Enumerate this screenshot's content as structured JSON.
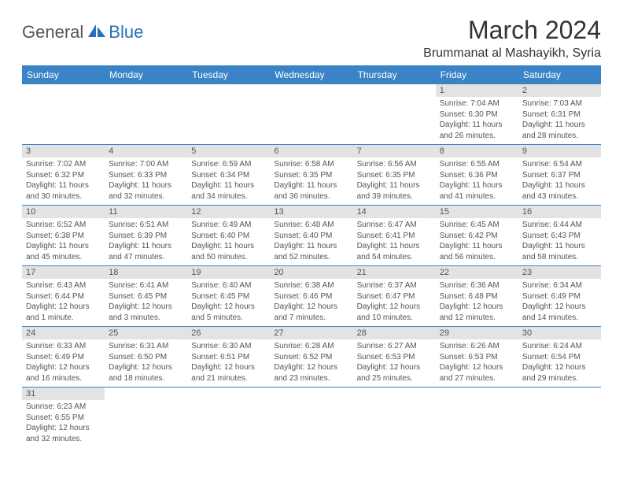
{
  "logo": {
    "part1": "General",
    "part2": "Blue"
  },
  "title": "March 2024",
  "location": "Brummanat al Mashayikh, Syria",
  "columns": [
    "Sunday",
    "Monday",
    "Tuesday",
    "Wednesday",
    "Thursday",
    "Friday",
    "Saturday"
  ],
  "colors": {
    "header_bg": "#3a83c6",
    "header_fg": "#ffffff",
    "daynum_bg": "#e3e3e3",
    "border": "#3a83c6",
    "logo_accent": "#2a6db8",
    "text": "#555555"
  },
  "weeks": [
    [
      null,
      null,
      null,
      null,
      null,
      {
        "n": "1",
        "sr": "Sunrise: 7:04 AM",
        "ss": "Sunset: 6:30 PM",
        "dl": "Daylight: 11 hours and 26 minutes."
      },
      {
        "n": "2",
        "sr": "Sunrise: 7:03 AM",
        "ss": "Sunset: 6:31 PM",
        "dl": "Daylight: 11 hours and 28 minutes."
      }
    ],
    [
      {
        "n": "3",
        "sr": "Sunrise: 7:02 AM",
        "ss": "Sunset: 6:32 PM",
        "dl": "Daylight: 11 hours and 30 minutes."
      },
      {
        "n": "4",
        "sr": "Sunrise: 7:00 AM",
        "ss": "Sunset: 6:33 PM",
        "dl": "Daylight: 11 hours and 32 minutes."
      },
      {
        "n": "5",
        "sr": "Sunrise: 6:59 AM",
        "ss": "Sunset: 6:34 PM",
        "dl": "Daylight: 11 hours and 34 minutes."
      },
      {
        "n": "6",
        "sr": "Sunrise: 6:58 AM",
        "ss": "Sunset: 6:35 PM",
        "dl": "Daylight: 11 hours and 36 minutes."
      },
      {
        "n": "7",
        "sr": "Sunrise: 6:56 AM",
        "ss": "Sunset: 6:35 PM",
        "dl": "Daylight: 11 hours and 39 minutes."
      },
      {
        "n": "8",
        "sr": "Sunrise: 6:55 AM",
        "ss": "Sunset: 6:36 PM",
        "dl": "Daylight: 11 hours and 41 minutes."
      },
      {
        "n": "9",
        "sr": "Sunrise: 6:54 AM",
        "ss": "Sunset: 6:37 PM",
        "dl": "Daylight: 11 hours and 43 minutes."
      }
    ],
    [
      {
        "n": "10",
        "sr": "Sunrise: 6:52 AM",
        "ss": "Sunset: 6:38 PM",
        "dl": "Daylight: 11 hours and 45 minutes."
      },
      {
        "n": "11",
        "sr": "Sunrise: 6:51 AM",
        "ss": "Sunset: 6:39 PM",
        "dl": "Daylight: 11 hours and 47 minutes."
      },
      {
        "n": "12",
        "sr": "Sunrise: 6:49 AM",
        "ss": "Sunset: 6:40 PM",
        "dl": "Daylight: 11 hours and 50 minutes."
      },
      {
        "n": "13",
        "sr": "Sunrise: 6:48 AM",
        "ss": "Sunset: 6:40 PM",
        "dl": "Daylight: 11 hours and 52 minutes."
      },
      {
        "n": "14",
        "sr": "Sunrise: 6:47 AM",
        "ss": "Sunset: 6:41 PM",
        "dl": "Daylight: 11 hours and 54 minutes."
      },
      {
        "n": "15",
        "sr": "Sunrise: 6:45 AM",
        "ss": "Sunset: 6:42 PM",
        "dl": "Daylight: 11 hours and 56 minutes."
      },
      {
        "n": "16",
        "sr": "Sunrise: 6:44 AM",
        "ss": "Sunset: 6:43 PM",
        "dl": "Daylight: 11 hours and 58 minutes."
      }
    ],
    [
      {
        "n": "17",
        "sr": "Sunrise: 6:43 AM",
        "ss": "Sunset: 6:44 PM",
        "dl": "Daylight: 12 hours and 1 minute."
      },
      {
        "n": "18",
        "sr": "Sunrise: 6:41 AM",
        "ss": "Sunset: 6:45 PM",
        "dl": "Daylight: 12 hours and 3 minutes."
      },
      {
        "n": "19",
        "sr": "Sunrise: 6:40 AM",
        "ss": "Sunset: 6:45 PM",
        "dl": "Daylight: 12 hours and 5 minutes."
      },
      {
        "n": "20",
        "sr": "Sunrise: 6:38 AM",
        "ss": "Sunset: 6:46 PM",
        "dl": "Daylight: 12 hours and 7 minutes."
      },
      {
        "n": "21",
        "sr": "Sunrise: 6:37 AM",
        "ss": "Sunset: 6:47 PM",
        "dl": "Daylight: 12 hours and 10 minutes."
      },
      {
        "n": "22",
        "sr": "Sunrise: 6:36 AM",
        "ss": "Sunset: 6:48 PM",
        "dl": "Daylight: 12 hours and 12 minutes."
      },
      {
        "n": "23",
        "sr": "Sunrise: 6:34 AM",
        "ss": "Sunset: 6:49 PM",
        "dl": "Daylight: 12 hours and 14 minutes."
      }
    ],
    [
      {
        "n": "24",
        "sr": "Sunrise: 6:33 AM",
        "ss": "Sunset: 6:49 PM",
        "dl": "Daylight: 12 hours and 16 minutes."
      },
      {
        "n": "25",
        "sr": "Sunrise: 6:31 AM",
        "ss": "Sunset: 6:50 PM",
        "dl": "Daylight: 12 hours and 18 minutes."
      },
      {
        "n": "26",
        "sr": "Sunrise: 6:30 AM",
        "ss": "Sunset: 6:51 PM",
        "dl": "Daylight: 12 hours and 21 minutes."
      },
      {
        "n": "27",
        "sr": "Sunrise: 6:28 AM",
        "ss": "Sunset: 6:52 PM",
        "dl": "Daylight: 12 hours and 23 minutes."
      },
      {
        "n": "28",
        "sr": "Sunrise: 6:27 AM",
        "ss": "Sunset: 6:53 PM",
        "dl": "Daylight: 12 hours and 25 minutes."
      },
      {
        "n": "29",
        "sr": "Sunrise: 6:26 AM",
        "ss": "Sunset: 6:53 PM",
        "dl": "Daylight: 12 hours and 27 minutes."
      },
      {
        "n": "30",
        "sr": "Sunrise: 6:24 AM",
        "ss": "Sunset: 6:54 PM",
        "dl": "Daylight: 12 hours and 29 minutes."
      }
    ],
    [
      {
        "n": "31",
        "sr": "Sunrise: 6:23 AM",
        "ss": "Sunset: 6:55 PM",
        "dl": "Daylight: 12 hours and 32 minutes."
      },
      null,
      null,
      null,
      null,
      null,
      null
    ]
  ]
}
